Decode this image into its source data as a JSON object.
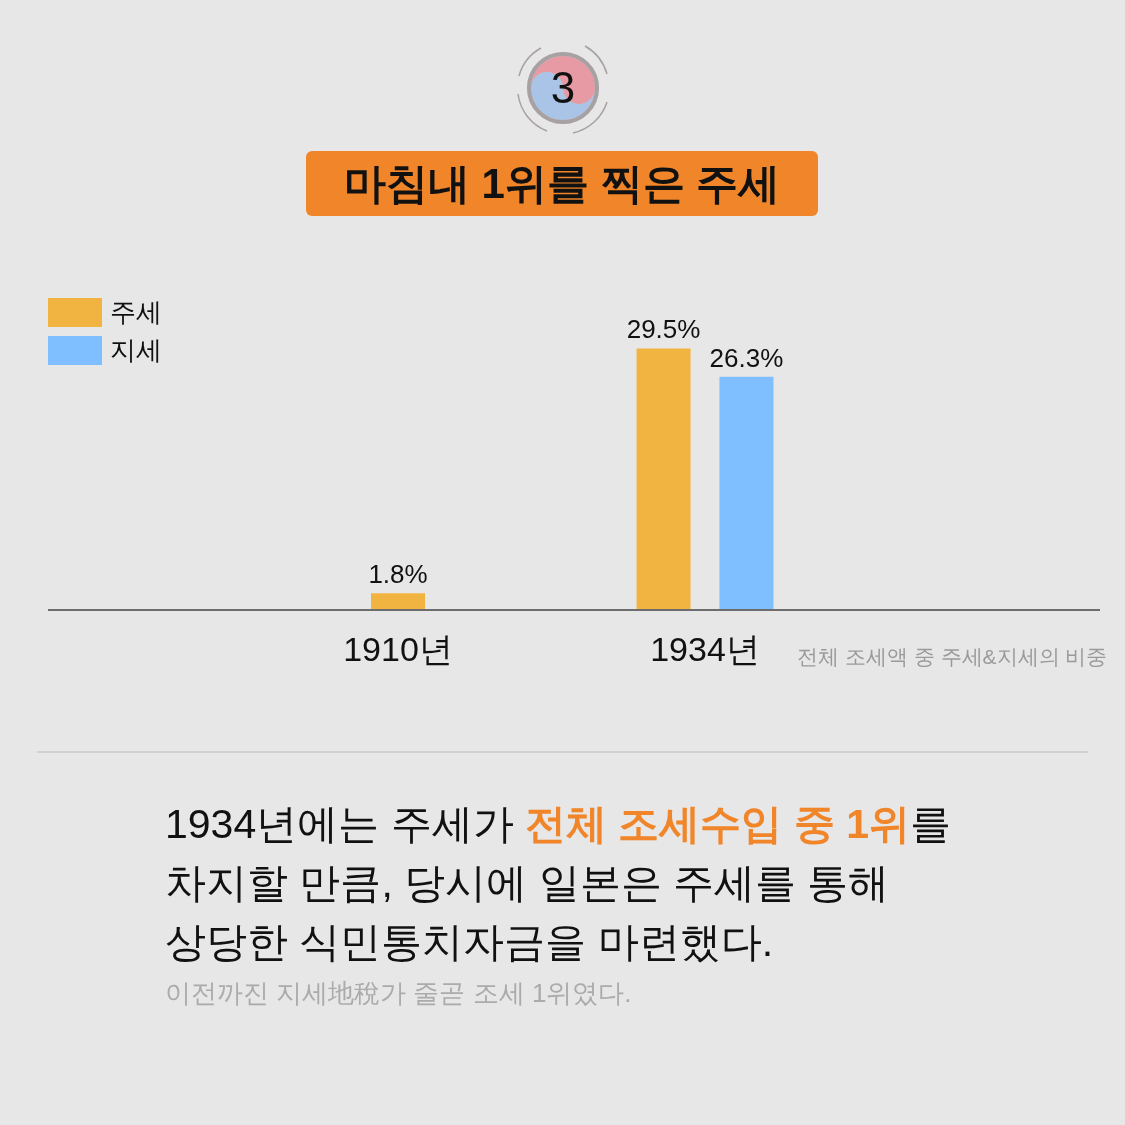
{
  "chart_data": {
    "type": "bar",
    "title": "마침내 1위를 찍은 주세",
    "categories": [
      "1910년",
      "1934년"
    ],
    "series": [
      {
        "name": "주세",
        "color": "#f2b441",
        "values": [
          1.8,
          29.5
        ],
        "value_labels": [
          "1.8%",
          "29.5%"
        ]
      },
      {
        "name": "지세",
        "color": "#80bfff",
        "values": [
          null,
          26.3
        ],
        "value_labels": [
          null,
          "26.3%"
        ]
      }
    ],
    "legend": "top left",
    "tick_labels": "x",
    "annotations": [
      "3",
      "전체 조세액 중 주세&지세의 비중",
      "1934년에는 주세가 ",
      "전체 조세수입 중 1위",
      "를",
      "차지할 만큼, 당시에 일본은 주세를 통해",
      "상당한 식민통치자금을 마련했다.",
      "이전까진 지세地稅가 줄곧 조세 1위였다."
    ]
  }
}
